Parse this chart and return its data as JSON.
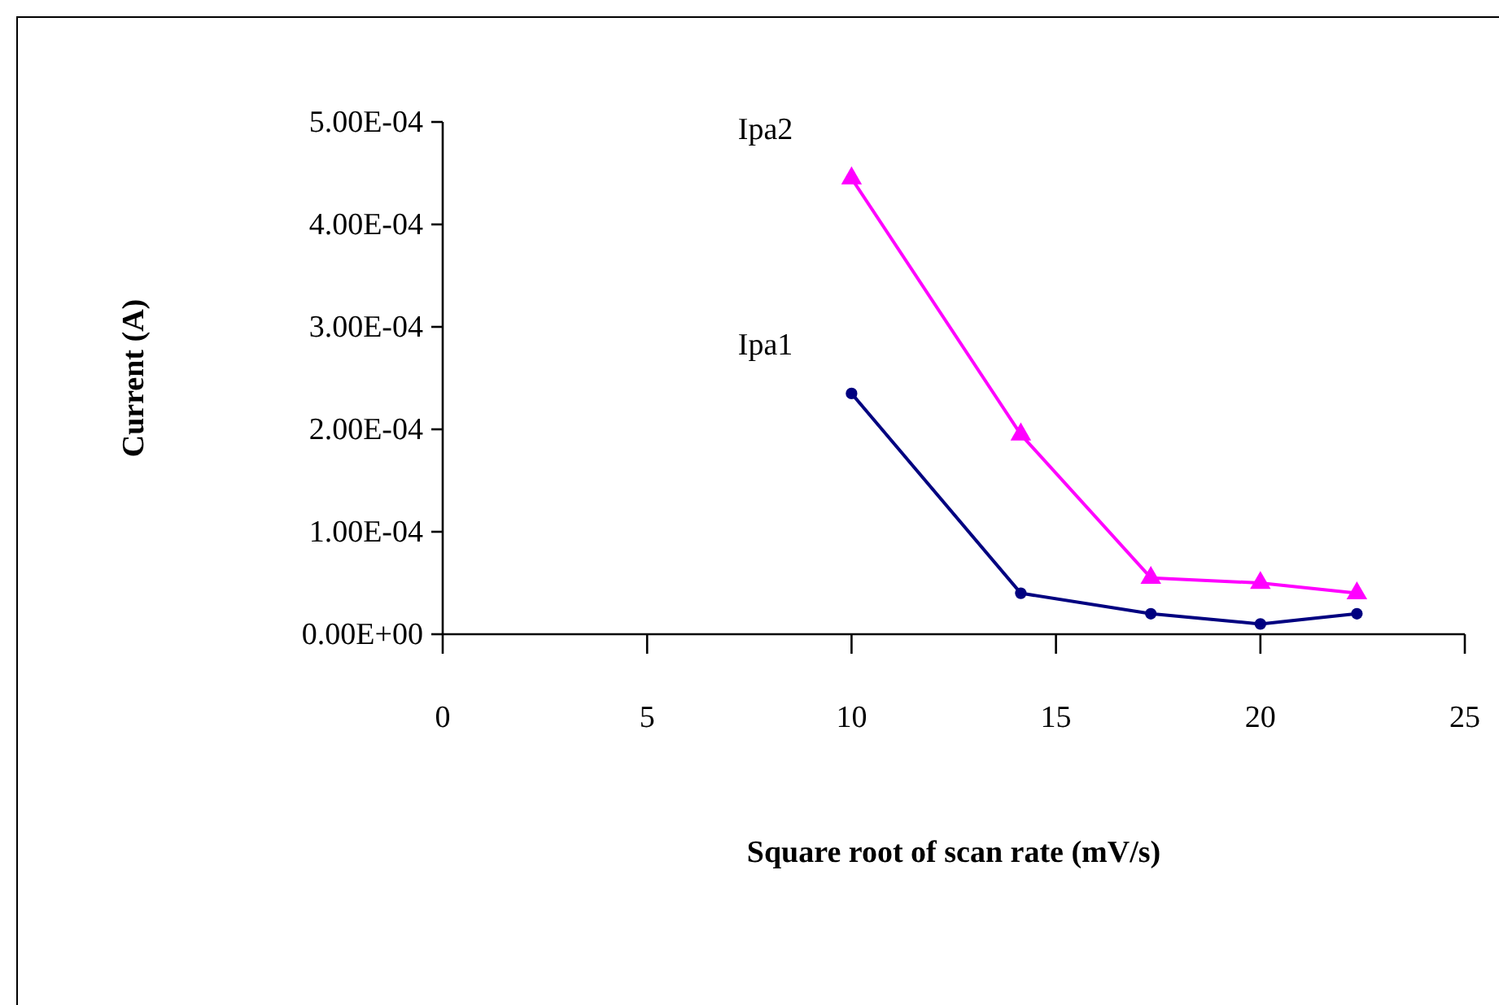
{
  "chart_data": {
    "type": "line",
    "xlabel": "Square root of scan rate (mV/s)",
    "ylabel": "Current (A)",
    "x": [
      10,
      14.14,
      17.32,
      20,
      22.36
    ],
    "series": [
      {
        "name": "Ipa1",
        "color": "#000080",
        "marker": "circle",
        "values": [
          0.000235,
          4e-05,
          2e-05,
          1e-05,
          2e-05
        ]
      },
      {
        "name": "Ipa2",
        "color": "#ff00ff",
        "marker": "triangle",
        "values": [
          0.000445,
          0.000195,
          5.5e-05,
          5e-05,
          4e-05
        ]
      }
    ],
    "xlim": [
      0,
      25
    ],
    "xticks": [
      0,
      5,
      10,
      15,
      20,
      25
    ],
    "ylim": [
      0,
      0.0005
    ],
    "yticks": [
      {
        "value": 0,
        "label": "0.00E+00"
      },
      {
        "value": 0.0001,
        "label": "1.00E-04"
      },
      {
        "value": 0.0002,
        "label": "2.00E-04"
      },
      {
        "value": 0.0003,
        "label": "3.00E-04"
      },
      {
        "value": 0.0004,
        "label": "4.00E-04"
      },
      {
        "value": 0.0005,
        "label": "5.00E-04"
      }
    ],
    "grid": false,
    "line_style": "solid"
  }
}
